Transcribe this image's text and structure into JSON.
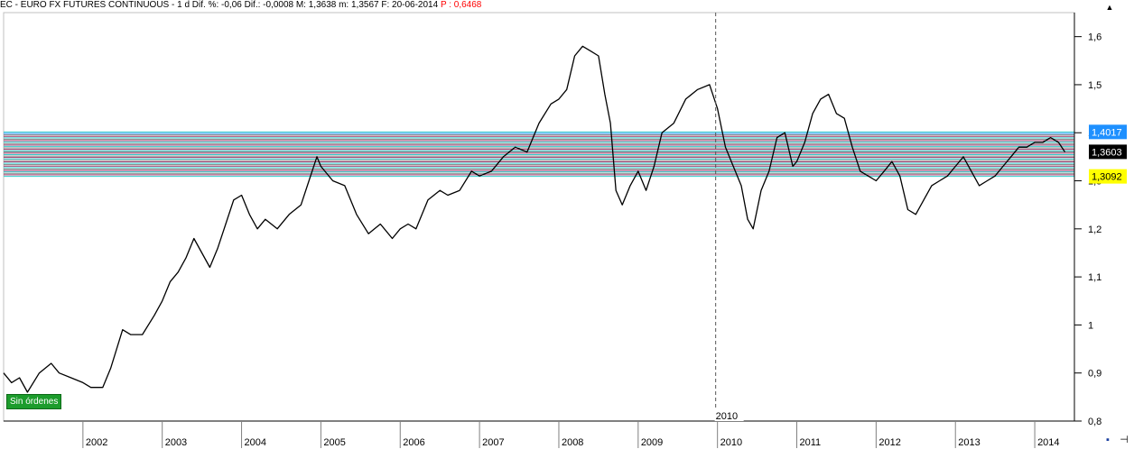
{
  "header": {
    "title": "EC - EURO FX FUTURES CONTINUOUS - 1 d  Dif. %: -0,06  Dif.: -0,0008  M: 1,3638  m: 1,3567  F: 20-06-2014",
    "p_value": "P : 0,6468"
  },
  "status_badge": "Sin órdenes",
  "crosshair_label": "2010",
  "price_tags": {
    "upper": {
      "text": "1,4017",
      "bg": "#1e90ff",
      "fg": "#ffffff"
    },
    "current": {
      "text": "1,3603",
      "bg": "#000000",
      "fg": "#ffffff"
    },
    "lower": {
      "text": "1,3092",
      "bg": "#ffff00",
      "fg": "#000000"
    }
  },
  "icons": [
    "scroll-up-icon",
    "save-icon",
    "pin-icon"
  ],
  "chart_data": {
    "type": "line",
    "x_unit": "year",
    "xlim": [
      2001.0,
      2014.5
    ],
    "ylim": [
      0.8,
      1.65
    ],
    "yticks": [
      {
        "v": 1.6,
        "label": "1,6"
      },
      {
        "v": 1.5,
        "label": "1,5"
      },
      {
        "v": 1.4,
        "label": "1,4"
      },
      {
        "v": 1.3,
        "label": "1,3"
      },
      {
        "v": 1.2,
        "label": "1,2"
      },
      {
        "v": 1.1,
        "label": "1,1"
      },
      {
        "v": 1.0,
        "label": "1"
      },
      {
        "v": 0.9,
        "label": "0,9"
      },
      {
        "v": 0.8,
        "label": "0,8"
      }
    ],
    "xticks": [
      {
        "v": 2002,
        "label": "2002"
      },
      {
        "v": 2003,
        "label": "2003"
      },
      {
        "v": 2004,
        "label": "2004"
      },
      {
        "v": 2005,
        "label": "2005"
      },
      {
        "v": 2006,
        "label": "2006"
      },
      {
        "v": 2007,
        "label": "2007"
      },
      {
        "v": 2008,
        "label": "2008"
      },
      {
        "v": 2009,
        "label": "2009"
      },
      {
        "v": 2010,
        "label": "2010"
      },
      {
        "v": 2011,
        "label": "2011"
      },
      {
        "v": 2012,
        "label": "2012"
      },
      {
        "v": 2013,
        "label": "2013"
      },
      {
        "v": 2014,
        "label": "2014"
      }
    ],
    "series": [
      {
        "color": "#000000",
        "x": [
          2001.0,
          2001.1,
          2001.2,
          2001.3,
          2001.45,
          2001.6,
          2001.7,
          2001.85,
          2002.0,
          2002.1,
          2002.25,
          2002.35,
          2002.5,
          2002.6,
          2002.75,
          2002.9,
          2003.0,
          2003.1,
          2003.2,
          2003.3,
          2003.4,
          2003.5,
          2003.6,
          2003.7,
          2003.8,
          2003.9,
          2004.0,
          2004.1,
          2004.2,
          2004.3,
          2004.45,
          2004.6,
          2004.75,
          2004.85,
          2004.95,
          2005.0,
          2005.15,
          2005.3,
          2005.45,
          2005.6,
          2005.75,
          2005.9,
          2006.0,
          2006.1,
          2006.2,
          2006.35,
          2006.5,
          2006.6,
          2006.75,
          2006.9,
          2007.0,
          2007.15,
          2007.3,
          2007.45,
          2007.6,
          2007.75,
          2007.9,
          2008.0,
          2008.1,
          2008.2,
          2008.3,
          2008.4,
          2008.5,
          2008.58,
          2008.65,
          2008.72,
          2008.8,
          2008.9,
          2009.0,
          2009.1,
          2009.2,
          2009.3,
          2009.45,
          2009.6,
          2009.75,
          2009.9,
          2010.0,
          2010.1,
          2010.2,
          2010.3,
          2010.38,
          2010.45,
          2010.55,
          2010.65,
          2010.75,
          2010.85,
          2010.95,
          2011.0,
          2011.1,
          2011.2,
          2011.3,
          2011.4,
          2011.5,
          2011.6,
          2011.7,
          2011.8,
          2011.9,
          2012.0,
          2012.1,
          2012.2,
          2012.3,
          2012.4,
          2012.5,
          2012.6,
          2012.7,
          2012.8,
          2012.9,
          2013.0,
          2013.1,
          2013.2,
          2013.3,
          2013.4,
          2013.5,
          2013.6,
          2013.7,
          2013.8,
          2013.9,
          2014.0,
          2014.1,
          2014.2,
          2014.3,
          2014.38
        ],
        "y": [
          0.9,
          0.88,
          0.89,
          0.86,
          0.9,
          0.92,
          0.9,
          0.89,
          0.88,
          0.87,
          0.87,
          0.91,
          0.99,
          0.98,
          0.98,
          1.02,
          1.05,
          1.09,
          1.11,
          1.14,
          1.18,
          1.15,
          1.12,
          1.16,
          1.21,
          1.26,
          1.27,
          1.23,
          1.2,
          1.22,
          1.2,
          1.23,
          1.25,
          1.3,
          1.35,
          1.33,
          1.3,
          1.29,
          1.23,
          1.19,
          1.21,
          1.18,
          1.2,
          1.21,
          1.2,
          1.26,
          1.28,
          1.27,
          1.28,
          1.32,
          1.31,
          1.32,
          1.35,
          1.37,
          1.36,
          1.42,
          1.46,
          1.47,
          1.49,
          1.56,
          1.58,
          1.57,
          1.56,
          1.48,
          1.42,
          1.28,
          1.25,
          1.29,
          1.32,
          1.28,
          1.33,
          1.4,
          1.42,
          1.47,
          1.49,
          1.5,
          1.45,
          1.37,
          1.33,
          1.29,
          1.22,
          1.2,
          1.28,
          1.32,
          1.39,
          1.4,
          1.33,
          1.34,
          1.38,
          1.44,
          1.47,
          1.48,
          1.44,
          1.43,
          1.37,
          1.32,
          1.31,
          1.3,
          1.32,
          1.34,
          1.31,
          1.24,
          1.23,
          1.26,
          1.29,
          1.3,
          1.31,
          1.33,
          1.35,
          1.32,
          1.29,
          1.3,
          1.31,
          1.33,
          1.35,
          1.37,
          1.37,
          1.38,
          1.38,
          1.39,
          1.38,
          1.36
        ]
      }
    ]
  },
  "hlines": [
    {
      "y": 1.4017,
      "color": "#33cccc"
    },
    {
      "y": 1.3985,
      "color": "#1e90ff"
    },
    {
      "y": 1.3955,
      "color": "#808080"
    },
    {
      "y": 1.3925,
      "color": "#993366"
    },
    {
      "y": 1.3895,
      "color": "#33cccc"
    },
    {
      "y": 1.3865,
      "color": "#808080"
    },
    {
      "y": 1.3835,
      "color": "#993366"
    },
    {
      "y": 1.3805,
      "color": "#33cccc"
    },
    {
      "y": 1.3775,
      "color": "#808080"
    },
    {
      "y": 1.3745,
      "color": "#993366"
    },
    {
      "y": 1.3715,
      "color": "#33cccc"
    },
    {
      "y": 1.3685,
      "color": "#808080"
    },
    {
      "y": 1.3655,
      "color": "#993366"
    },
    {
      "y": 1.3625,
      "color": "#33cccc"
    },
    {
      "y": 1.3603,
      "color": "#808080"
    },
    {
      "y": 1.3575,
      "color": "#993366"
    },
    {
      "y": 1.3545,
      "color": "#33cccc"
    },
    {
      "y": 1.3515,
      "color": "#808080"
    },
    {
      "y": 1.3485,
      "color": "#993366"
    },
    {
      "y": 1.3455,
      "color": "#33cccc"
    },
    {
      "y": 1.3425,
      "color": "#808080"
    },
    {
      "y": 1.3395,
      "color": "#993366"
    },
    {
      "y": 1.3365,
      "color": "#33cccc"
    },
    {
      "y": 1.3335,
      "color": "#808080"
    },
    {
      "y": 1.3305,
      "color": "#993366"
    },
    {
      "y": 1.3275,
      "color": "#33cccc"
    },
    {
      "y": 1.3245,
      "color": "#808080"
    },
    {
      "y": 1.3215,
      "color": "#993366"
    },
    {
      "y": 1.3185,
      "color": "#33cccc"
    },
    {
      "y": 1.3155,
      "color": "#808080"
    },
    {
      "y": 1.3125,
      "color": "#993366"
    },
    {
      "y": 1.3092,
      "color": "#33cccc"
    }
  ]
}
